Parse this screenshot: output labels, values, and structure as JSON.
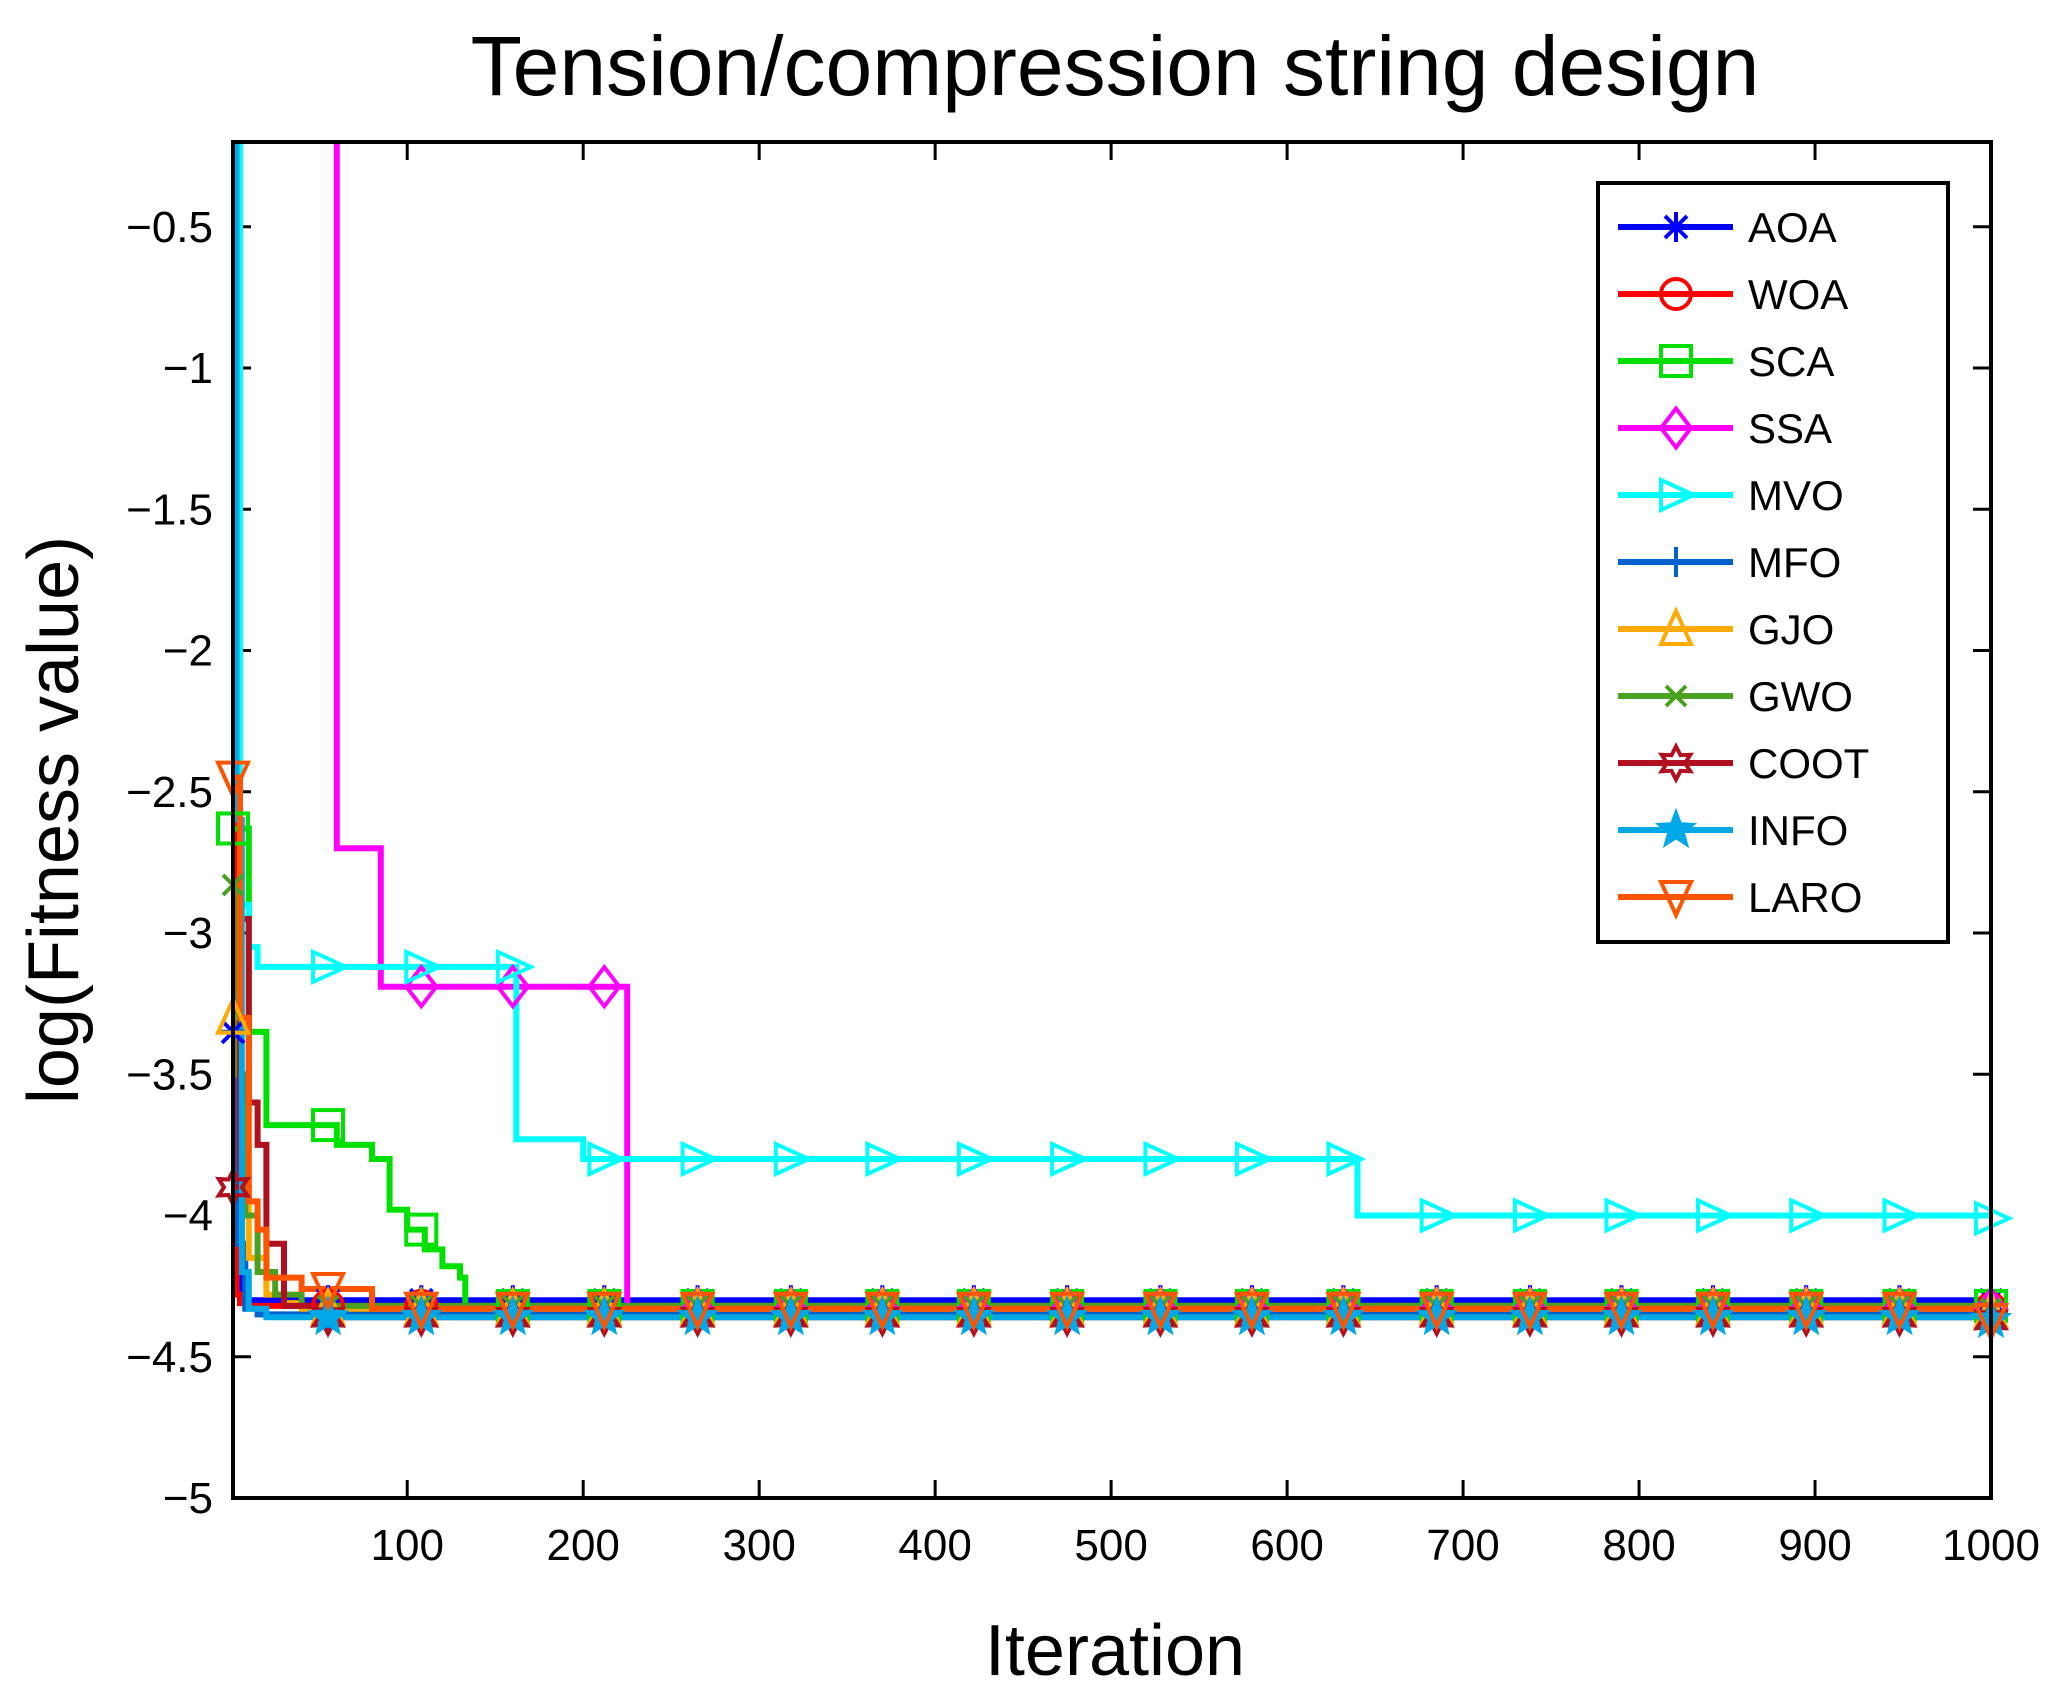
{
  "chart_data": {
    "type": "line",
    "title": "Tension/compression string design",
    "xlabel": "Iteration",
    "ylabel": "log(Fitness value)",
    "xlim": [
      1,
      1000
    ],
    "ylim": [
      -5,
      -0.2
    ],
    "x_ticks": [
      100,
      200,
      300,
      400,
      500,
      600,
      700,
      800,
      900,
      1000
    ],
    "x_tick_labels": [
      "100",
      "200",
      "300",
      "400",
      "500",
      "600",
      "700",
      "800",
      "900",
      "1000"
    ],
    "y_ticks": [
      -0.5,
      -1,
      -1.5,
      -2,
      -2.5,
      -3,
      -3.5,
      -4,
      -4.5,
      -5
    ],
    "y_tick_labels": [
      "−0.5",
      "−1",
      "−1.5",
      "−2",
      "−2.5",
      "−3",
      "−3.5",
      "−4",
      "−4.5",
      "−5"
    ],
    "legend_position": "top-right",
    "series": [
      {
        "name": "AOA",
        "color": "#0000ff",
        "marker": "asterisk",
        "x": [
          1,
          3,
          6,
          1000
        ],
        "y": [
          -3.35,
          -4.0,
          -4.3,
          -4.3
        ]
      },
      {
        "name": "WOA",
        "color": "#ff0000",
        "marker": "circle",
        "x": [
          1,
          3,
          5,
          8,
          1000
        ],
        "y": [
          -0.2,
          -4.28,
          -4.31,
          -4.32,
          -4.33
        ]
      },
      {
        "name": "SCA",
        "color": "#00e000",
        "marker": "square",
        "x": [
          1,
          10,
          20,
          40,
          60,
          80,
          90,
          100,
          110,
          120,
          130,
          133,
          1000
        ],
        "y": [
          -2.63,
          -3.35,
          -3.68,
          -3.68,
          -3.75,
          -3.8,
          -3.98,
          -4.05,
          -4.12,
          -4.18,
          -4.22,
          -4.32,
          -4.32
        ]
      },
      {
        "name": "SSA",
        "color": "#ff00ff",
        "marker": "diamond",
        "x": [
          60,
          60,
          85,
          85,
          225,
          225,
          1000
        ],
        "y": [
          -0.2,
          -2.7,
          -2.7,
          -3.19,
          -3.19,
          -4.33,
          -4.33
        ]
      },
      {
        "name": "MVO",
        "color": "#00ffff",
        "marker": "triangle-right",
        "x": [
          1,
          5,
          10,
          15,
          160,
          162,
          200,
          630,
          640,
          1000
        ],
        "y": [
          -0.2,
          -2.9,
          -3.05,
          -3.12,
          -3.12,
          -3.73,
          -3.8,
          -3.8,
          -4.0,
          -4.01
        ]
      },
      {
        "name": "MFO",
        "color": "#0062cc",
        "marker": "plus",
        "x": [
          1,
          4,
          8,
          15,
          1000
        ],
        "y": [
          -3.35,
          -4.1,
          -4.33,
          -4.35,
          -4.36
        ]
      },
      {
        "name": "GJO",
        "color": "#ffaa00",
        "marker": "triangle-up",
        "x": [
          1,
          5,
          10,
          20,
          30,
          40,
          1000
        ],
        "y": [
          -3.3,
          -3.9,
          -4.15,
          -4.28,
          -4.31,
          -4.33,
          -4.34
        ]
      },
      {
        "name": "GWO",
        "color": "#4aa020",
        "marker": "x",
        "x": [
          1,
          4,
          8,
          15,
          25,
          40,
          1000
        ],
        "y": [
          -2.83,
          -3.5,
          -4.0,
          -4.2,
          -4.28,
          -4.32,
          -4.33
        ]
      },
      {
        "name": "COOT",
        "color": "#b01020",
        "marker": "hexagram",
        "x": [
          1,
          5,
          10,
          15,
          20,
          30,
          50,
          1000
        ],
        "y": [
          -3.9,
          -2.95,
          -3.6,
          -3.75,
          -4.1,
          -4.32,
          -4.36,
          -4.37
        ]
      },
      {
        "name": "INFO",
        "color": "#00a8e8",
        "marker": "pentagram",
        "x": [
          1,
          3,
          6,
          10,
          20,
          1000
        ],
        "y": [
          -0.2,
          -2.6,
          -4.2,
          -4.33,
          -4.36,
          -4.37
        ]
      },
      {
        "name": "LARO",
        "color": "#ff5500",
        "marker": "triangle-down",
        "x": [
          1,
          5,
          10,
          15,
          20,
          40,
          80,
          1000
        ],
        "y": [
          -2.45,
          -3.3,
          -3.95,
          -4.05,
          -4.22,
          -4.26,
          -4.33,
          -4.37
        ]
      }
    ]
  }
}
